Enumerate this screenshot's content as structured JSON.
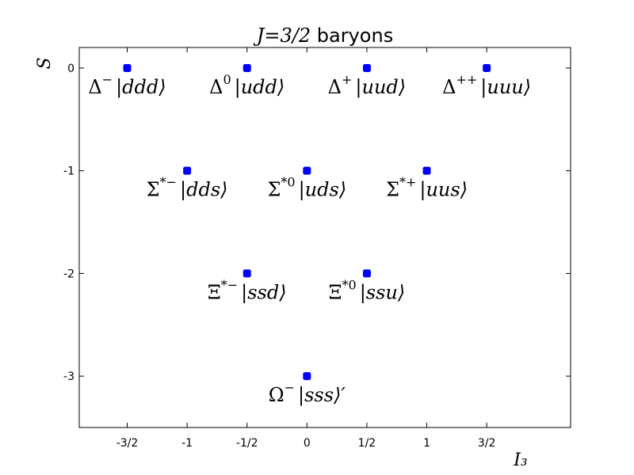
{
  "chart_data": {
    "type": "scatter",
    "title_math": "J=3/2",
    "title_text": " baryons",
    "xlabel": "I₃",
    "ylabel": "S",
    "xlim": [
      -1.9,
      2.2
    ],
    "ylim": [
      -3.5,
      0.2
    ],
    "xticks": [
      {
        "value": -1.5,
        "label": "-3/2"
      },
      {
        "value": -1,
        "label": "-1"
      },
      {
        "value": -0.5,
        "label": "-1/2"
      },
      {
        "value": 0,
        "label": "0"
      },
      {
        "value": 0.5,
        "label": "1/2"
      },
      {
        "value": 1,
        "label": "1"
      },
      {
        "value": 1.5,
        "label": "3/2"
      }
    ],
    "yticks": [
      {
        "value": 0,
        "label": "0"
      },
      {
        "value": -1,
        "label": "-1"
      },
      {
        "value": -2,
        "label": "-2"
      },
      {
        "value": -3,
        "label": "-3"
      }
    ],
    "marker_color": "#0000ff",
    "points": [
      {
        "x": -1.5,
        "y": 0,
        "symbol": "Δ",
        "sup": "−",
        "state": "|ddd⟩"
      },
      {
        "x": -0.5,
        "y": 0,
        "symbol": "Δ",
        "sup": "0",
        "state": "|udd⟩"
      },
      {
        "x": 0.5,
        "y": 0,
        "symbol": "Δ",
        "sup": "+",
        "state": "|uud⟩"
      },
      {
        "x": 1.5,
        "y": 0,
        "symbol": "Δ",
        "sup": "++",
        "state": "|uuu⟩"
      },
      {
        "x": -1,
        "y": -1,
        "symbol": "Σ",
        "sup": "*−",
        "state": "|dds⟩"
      },
      {
        "x": 0,
        "y": -1,
        "symbol": "Σ",
        "sup": "*0",
        "state": "|uds⟩"
      },
      {
        "x": 1,
        "y": -1,
        "symbol": "Σ",
        "sup": "*+",
        "state": "|uus⟩"
      },
      {
        "x": -0.5,
        "y": -2,
        "symbol": "Ξ",
        "sup": "*−",
        "state": "|ssd⟩"
      },
      {
        "x": 0.5,
        "y": -2,
        "symbol": "Ξ",
        "sup": "*0",
        "state": "|ssu⟩"
      },
      {
        "x": 0,
        "y": -3,
        "symbol": "Ω",
        "sup": "−",
        "state": "|sss⟩′"
      }
    ]
  }
}
